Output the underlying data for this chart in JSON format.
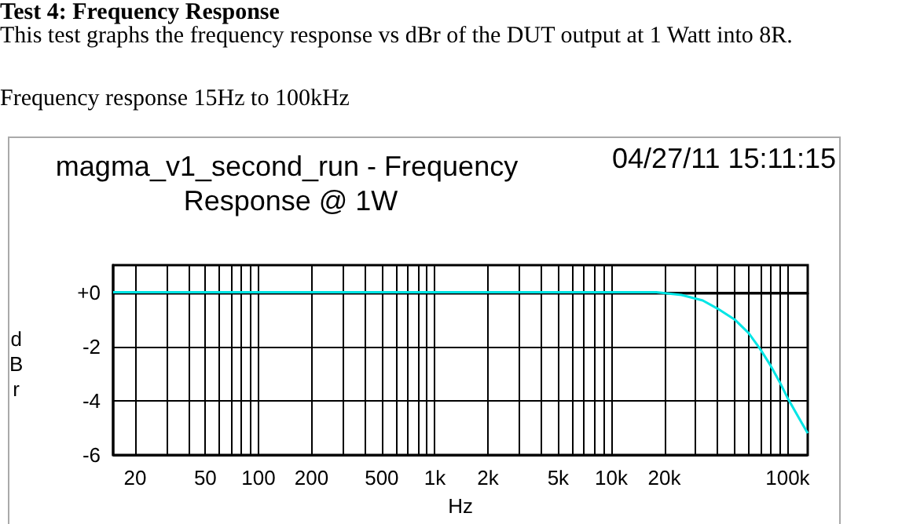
{
  "chart_data": {
    "type": "line",
    "title": "Test 4: Frequency Response",
    "subtitle": "This test graphs the frequency response vs dBr of the DUT output at 1 Watt into 8R.",
    "annotations": [
      "Frequency response 15Hz to 100kHz",
      "magma_v1_second_run - Frequency Response @ 1W",
      "04/27/11 15:11:15"
    ],
    "xlabel": "Hz",
    "ylabel": "dBr",
    "log": "x",
    "grid": true,
    "marker": "none",
    "line_style": "solid",
    "xlim": [
      15,
      130000
    ],
    "ylim": [
      -6,
      1
    ],
    "xticks": [
      20,
      {
        "value": 30,
        "label": null
      },
      {
        "value": 40,
        "label": null
      },
      50,
      {
        "value": 60,
        "label": null
      },
      {
        "value": 70,
        "label": null
      },
      {
        "value": 80,
        "label": null
      },
      {
        "value": 90,
        "label": null
      },
      100,
      200,
      {
        "value": 300,
        "label": null
      },
      {
        "value": 400,
        "label": null
      },
      500,
      {
        "value": 600,
        "label": null
      },
      {
        "value": 700,
        "label": null
      },
      {
        "value": 800,
        "label": null
      },
      {
        "value": 900,
        "label": null
      },
      {
        "value": 1000,
        "label": "1k"
      },
      {
        "value": 2000,
        "label": "2k"
      },
      {
        "value": 3000,
        "label": null
      },
      {
        "value": 4000,
        "label": null
      },
      {
        "value": 5000,
        "label": "5k"
      },
      {
        "value": 6000,
        "label": null
      },
      {
        "value": 7000,
        "label": null
      },
      {
        "value": 8000,
        "label": null
      },
      {
        "value": 9000,
        "label": null
      },
      {
        "value": 10000,
        "label": "10k"
      },
      {
        "value": 20000,
        "label": "20k"
      },
      {
        "value": 30000,
        "label": null
      },
      {
        "value": 40000,
        "label": null
      },
      {
        "value": 50000,
        "label": null
      },
      {
        "value": 60000,
        "label": null
      },
      {
        "value": 70000,
        "label": null
      },
      {
        "value": 80000,
        "label": null
      },
      {
        "value": 90000,
        "label": null
      },
      {
        "value": 100000,
        "label": "100k"
      }
    ],
    "yticks": [
      -6,
      -4,
      -2,
      {
        "value": 0,
        "label": "+0"
      }
    ],
    "series": [
      {
        "color": "#00e5e5",
        "x": [
          15,
          1000,
          18000,
          25000,
          33000,
          40000,
          50000,
          60000,
          70000,
          80000,
          90000,
          100000,
          115000,
          130000
        ],
        "values": [
          0,
          0,
          0,
          -0.1,
          -0.3,
          -0.6,
          -1.0,
          -1.5,
          -2.1,
          -2.7,
          -3.3,
          -3.9,
          -4.6,
          -5.2
        ]
      }
    ]
  }
}
